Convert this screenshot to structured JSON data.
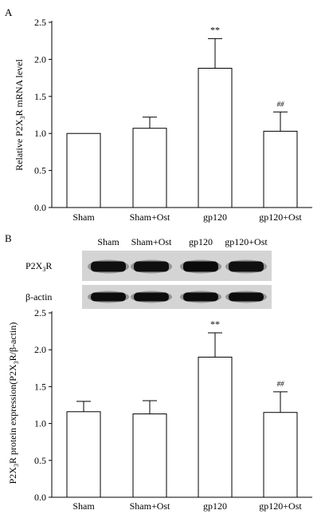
{
  "chart_data": [
    {
      "panel": "A",
      "type": "bar",
      "ylabel": "Relative P2X3R mRNA level",
      "ylabel_parts": [
        "Relative P2X",
        "3",
        "R mRNA level"
      ],
      "ylim": [
        0,
        2.5
      ],
      "yticks": [
        "0.0",
        "0.5",
        "1.0",
        "1.5",
        "2.0",
        "2.5"
      ],
      "ytick_values": [
        0,
        0.5,
        1.0,
        1.5,
        2.0,
        2.5
      ],
      "categories": [
        "Sham",
        "Sham+Ost",
        "gp120",
        "gp120+Ost"
      ],
      "values": [
        1.0,
        1.07,
        1.88,
        1.03
      ],
      "errors": [
        0,
        0.15,
        0.4,
        0.26
      ],
      "annotations": [
        "",
        "",
        "**",
        "##"
      ]
    },
    {
      "panel": "B",
      "type": "bar",
      "ylabel": "P2X3R protein expression(P2X3R/β-actin)",
      "ylabel_parts": [
        "P2X",
        "3",
        "R protein expression(P2X",
        "3",
        "R/β-actin)"
      ],
      "ylim": [
        0,
        2.5
      ],
      "yticks": [
        "0.0",
        "0.5",
        "1.0",
        "1.5",
        "2.0",
        "2.5"
      ],
      "ytick_values": [
        0,
        0.5,
        1.0,
        1.5,
        2.0,
        2.5
      ],
      "categories": [
        "Sham",
        "Sham+Ost",
        "gp120",
        "gp120+Ost"
      ],
      "values": [
        1.16,
        1.13,
        1.9,
        1.15
      ],
      "errors": [
        0.14,
        0.18,
        0.33,
        0.28
      ],
      "annotations": [
        "",
        "",
        "**",
        "##"
      ]
    }
  ],
  "blot": {
    "lanes": [
      "Sham",
      "Sham+Ost",
      "gp120",
      "gp120+Ost"
    ],
    "rows": [
      {
        "label_parts": [
          "P2X",
          "3",
          "R"
        ],
        "band_intensity": [
          0.85,
          0.85,
          1.0,
          0.8
        ]
      },
      {
        "label_parts": [
          "β-actin"
        ],
        "band_intensity": [
          0.95,
          0.95,
          0.95,
          0.95
        ]
      }
    ]
  },
  "panel_labels": [
    "A",
    "B"
  ]
}
